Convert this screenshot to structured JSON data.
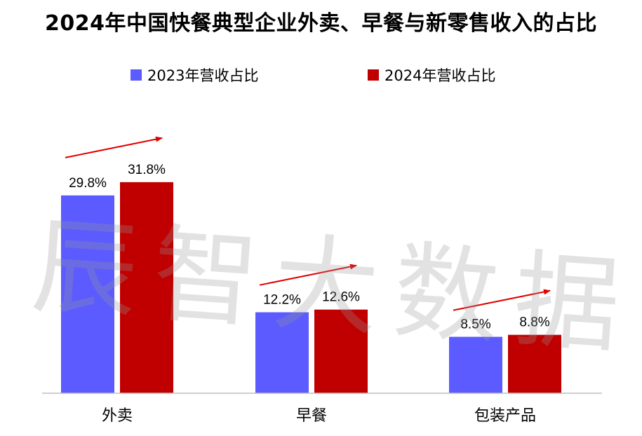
{
  "title": "2024年中国快餐典型企业外卖、早餐与新零售收入的占比",
  "watermark": "辰智大数据",
  "colors": {
    "series_2023": "#5B5BFF",
    "series_2024": "#C00000",
    "arrow": "#E00000",
    "axis": "#BFBFBF"
  },
  "chart_data": {
    "type": "bar",
    "categories": [
      "外卖",
      "早餐",
      "包装产品"
    ],
    "series": [
      {
        "name": "2023年营收占比",
        "values": [
          29.8,
          12.2,
          8.5
        ],
        "labels": [
          "29.8%",
          "12.2%",
          "8.5%"
        ]
      },
      {
        "name": "2024年营收占比",
        "values": [
          31.8,
          12.6,
          8.8
        ],
        "labels": [
          "31.8%",
          "12.6%",
          "8.8%"
        ]
      }
    ],
    "ylim": [
      0,
      40
    ],
    "grid": false,
    "legend_position": "top",
    "annotations": "upward trend arrow above each category"
  }
}
